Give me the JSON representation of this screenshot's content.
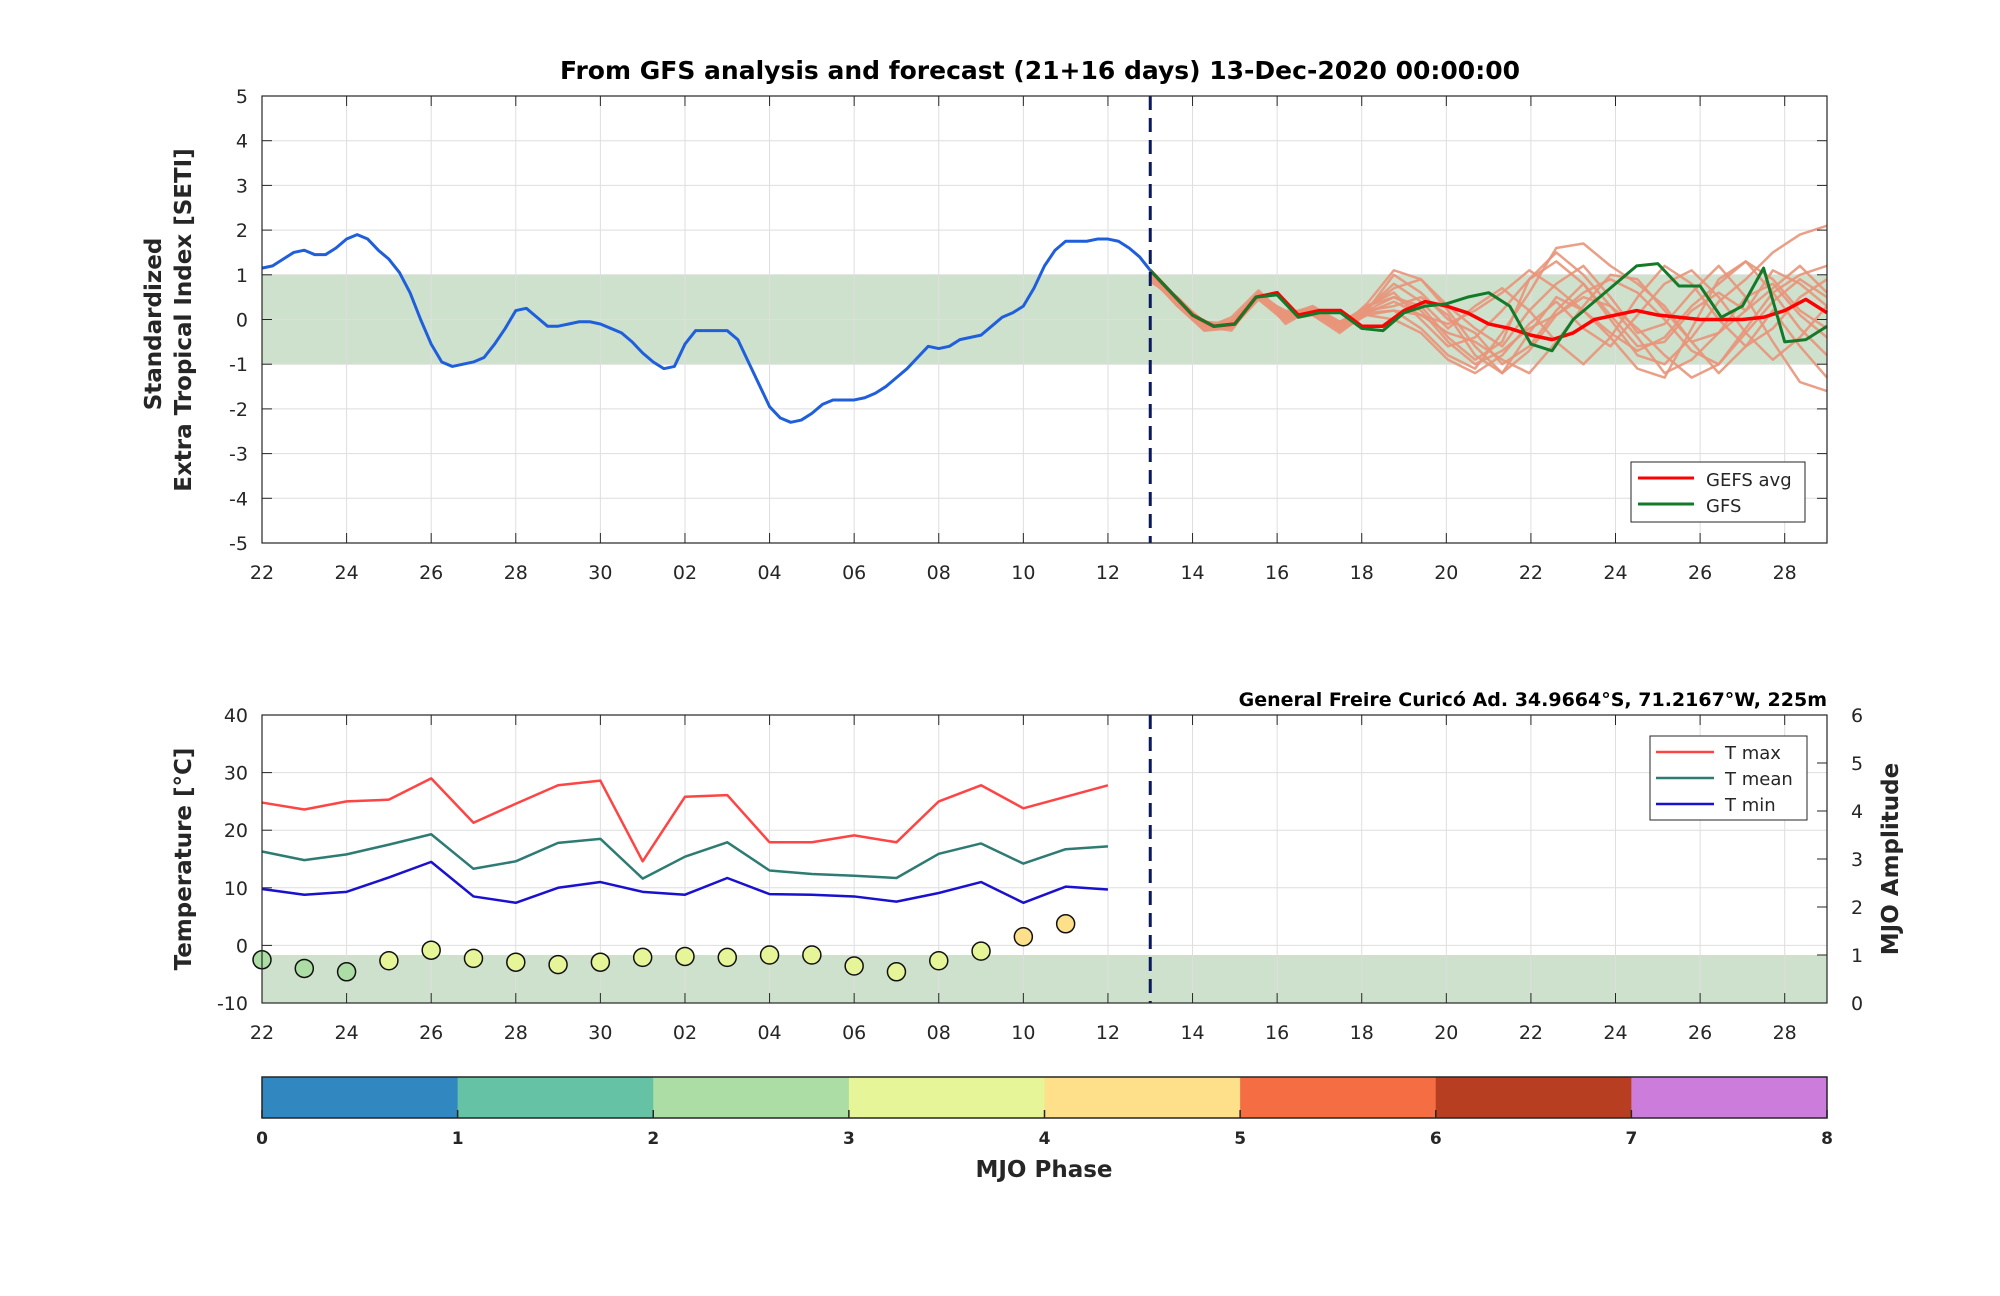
{
  "title": "From GFS analysis and forecast (21+16 days) 13-Dec-2020 00:00:00",
  "station_label": "General Freire Curicó Ad. 34.9664°S, 71.2167°W, 225m",
  "colors": {
    "analysis": "#1f5fdc",
    "gefs_avg": "#ff0000",
    "gfs": "#137a2a",
    "ensemble": "#e8957a",
    "band": "#c2d9c0",
    "tmax": "#ff4444",
    "tmean": "#2e7b74",
    "tmin": "#1a10d0",
    "forecast_line": "#0a1a5c"
  },
  "chart_data": [
    {
      "type": "line",
      "ylabel": "Standardized\nExtra Tropical Index [SETI]",
      "ylim": [
        -5,
        5
      ],
      "yticks": [
        "5",
        "4",
        "3",
        "2",
        "1",
        "0",
        "-1",
        "-2",
        "-3",
        "-4",
        "-5"
      ],
      "xlim_days": [
        0,
        37
      ],
      "xtick_labels": [
        "22",
        "24",
        "26",
        "28",
        "30",
        "02",
        "04",
        "06",
        "08",
        "10",
        "12",
        "14",
        "16",
        "18",
        "20",
        "22",
        "24",
        "26",
        "28"
      ],
      "grid": true,
      "shaded_band": [
        -1,
        1
      ],
      "forecast_start_day": 21,
      "legend": {
        "position": "bottom-right",
        "entries": [
          "GEFS avg",
          "GFS"
        ]
      },
      "series": [
        {
          "name": "Analysis",
          "x": [
            0,
            0.25,
            0.5,
            0.75,
            1,
            1.25,
            1.5,
            1.75,
            2,
            2.25,
            2.5,
            2.75,
            3,
            3.25,
            3.5,
            3.75,
            4,
            4.25,
            4.5,
            4.75,
            5,
            5.25,
            5.5,
            5.75,
            6,
            6.25,
            6.5,
            6.75,
            7,
            7.25,
            7.5,
            7.75,
            8,
            8.25,
            8.5,
            8.75,
            9,
            9.25,
            9.5,
            9.75,
            10,
            10.25,
            10.5,
            10.75,
            11,
            11.25,
            11.5,
            11.75,
            12,
            12.25,
            12.5,
            12.75,
            13,
            13.25,
            13.5,
            13.75,
            14,
            14.25,
            14.5,
            14.75,
            15,
            15.25,
            15.5,
            15.75,
            16,
            16.25,
            16.5,
            16.75,
            17,
            17.25,
            17.5,
            17.75,
            18,
            18.25,
            18.5,
            18.75,
            19,
            19.25,
            19.5,
            19.75,
            20,
            20.25,
            20.5,
            20.75,
            21
          ],
          "y": [
            1.15,
            1.2,
            1.35,
            1.5,
            1.55,
            1.45,
            1.45,
            1.6,
            1.8,
            1.9,
            1.8,
            1.55,
            1.35,
            1.05,
            0.6,
            -0.0,
            -0.55,
            -0.95,
            -1.05,
            -1.0,
            -0.95,
            -0.85,
            -0.55,
            -0.2,
            0.2,
            0.25,
            0.05,
            -0.15,
            -0.15,
            -0.1,
            -0.05,
            -0.05,
            -0.1,
            -0.2,
            -0.3,
            -0.5,
            -0.75,
            -0.95,
            -1.1,
            -1.05,
            -0.55,
            -0.25,
            -0.25,
            -0.25,
            -0.25,
            -0.45,
            -0.95,
            -1.45,
            -1.95,
            -2.2,
            -2.3,
            -2.25,
            -2.1,
            -1.9,
            -1.8,
            -1.8,
            -1.8,
            -1.75,
            -1.65,
            -1.5,
            -1.3,
            -1.1,
            -0.85,
            -0.6,
            -0.65,
            -0.6,
            -0.45,
            -0.4,
            -0.35,
            -0.15,
            0.05,
            0.15,
            0.3,
            0.7,
            1.2,
            1.55,
            1.75,
            1.75,
            1.75,
            1.8,
            1.8,
            1.75,
            1.6,
            1.4,
            1.1
          ]
        },
        {
          "name": "GEFS avg",
          "x": [
            21,
            21.5,
            22,
            22.5,
            23,
            23.5,
            24,
            24.5,
            25,
            25.5,
            26,
            26.5,
            27,
            27.5,
            28,
            28.5,
            29,
            29.5,
            30,
            30.5,
            31,
            31.5,
            32,
            32.5,
            33,
            33.5,
            34,
            34.5,
            35,
            35.5,
            36,
            36.5,
            37
          ],
          "y": [
            1.1,
            0.6,
            0.1,
            -0.15,
            -0.1,
            0.5,
            0.6,
            0.1,
            0.2,
            0.2,
            -0.15,
            -0.15,
            0.2,
            0.4,
            0.3,
            0.15,
            -0.1,
            -0.2,
            -0.35,
            -0.45,
            -0.3,
            0.0,
            0.1,
            0.2,
            0.1,
            0.05,
            0.0,
            0.0,
            0.0,
            0.05,
            0.2,
            0.45,
            0.15
          ]
        },
        {
          "name": "GFS",
          "x": [
            21,
            21.5,
            22,
            22.5,
            23,
            23.5,
            24,
            24.5,
            25,
            25.5,
            26,
            26.5,
            27,
            27.5,
            28,
            28.5,
            29,
            29.5,
            30,
            30.5,
            31,
            31.5,
            32,
            32.5,
            33,
            33.5,
            34,
            34.5,
            35,
            35.5,
            36,
            36.5,
            37
          ],
          "y": [
            1.1,
            0.6,
            0.1,
            -0.15,
            -0.1,
            0.5,
            0.55,
            0.05,
            0.15,
            0.15,
            -0.2,
            -0.25,
            0.15,
            0.3,
            0.35,
            0.5,
            0.6,
            0.3,
            -0.55,
            -0.7,
            0.0,
            0.4,
            0.8,
            1.2,
            1.25,
            0.75,
            0.75,
            0.05,
            0.3,
            1.15,
            -0.5,
            -0.45,
            -0.15
          ]
        }
      ],
      "ensemble_members": [
        [
          0.9,
          0.45,
          -0.2,
          -0.1,
          0.55,
          0.0,
          0.15,
          -0.15,
          0.3,
          0.5,
          0.3,
          -0.4,
          -0.9,
          -0.5,
          0.9,
          1.3,
          0.8,
          0.1,
          -0.6,
          -0.5,
          0.2,
          0.6,
          0.2,
          1.1,
          0.8,
          0.3
        ],
        [
          0.95,
          0.4,
          -0.15,
          -0.05,
          0.5,
          0.1,
          0.2,
          -0.25,
          0.2,
          1.0,
          0.6,
          0.0,
          -0.3,
          -1.0,
          -0.6,
          0.2,
          0.8,
          0.0,
          -0.8,
          -1.0,
          -0.4,
          0.4,
          0.9,
          1.5,
          1.9,
          2.1
        ],
        [
          1.0,
          0.35,
          -0.25,
          -0.2,
          0.6,
          0.15,
          0.25,
          -0.1,
          0.1,
          0.2,
          -0.2,
          -0.8,
          -1.1,
          -0.3,
          0.6,
          1.6,
          1.7,
          1.2,
          0.8,
          0.3,
          -0.5,
          -1.2,
          -0.6,
          0.2,
          -0.6,
          -1.3
        ],
        [
          0.85,
          0.5,
          -0.1,
          -0.15,
          0.45,
          -0.05,
          0.3,
          -0.05,
          0.25,
          0.7,
          0.9,
          0.2,
          -0.6,
          -1.2,
          -0.3,
          0.5,
          0.2,
          -0.4,
          -1.1,
          -1.3,
          -0.2,
          0.9,
          1.3,
          0.6,
          -0.2,
          -0.8
        ],
        [
          0.95,
          0.3,
          -0.2,
          0.05,
          0.65,
          0.05,
          0.1,
          -0.3,
          0.15,
          0.4,
          0.1,
          -0.3,
          -0.5,
          -0.9,
          -1.2,
          -0.5,
          0.3,
          1.0,
          0.9,
          0.2,
          -0.5,
          -0.3,
          0.5,
          0.8,
          0.1,
          -0.4
        ],
        [
          0.9,
          0.45,
          -0.05,
          -0.1,
          0.5,
          0.2,
          0.15,
          -0.2,
          0.35,
          1.1,
          0.9,
          0.3,
          -0.2,
          -0.6,
          0.2,
          0.8,
          1.2,
          0.5,
          -0.3,
          -0.1,
          0.6,
          1.2,
          0.5,
          -0.5,
          -1.4,
          -1.6
        ],
        [
          1.0,
          0.4,
          -0.15,
          -0.25,
          0.55,
          0.1,
          0.2,
          -0.15,
          0.2,
          0.3,
          0.5,
          0.1,
          -0.8,
          -1.2,
          -0.7,
          0.1,
          0.6,
          0.9,
          0.6,
          0.0,
          -0.7,
          -1.0,
          -0.3,
          0.4,
          0.9,
          0.5
        ],
        [
          0.9,
          0.35,
          -0.2,
          -0.05,
          0.6,
          -0.1,
          0.25,
          -0.1,
          0.3,
          0.6,
          0.0,
          -0.6,
          -0.4,
          0.2,
          0.9,
          1.5,
          1.0,
          0.3,
          -0.2,
          -0.8,
          -1.3,
          -1.0,
          -0.2,
          0.6,
          1.0,
          1.2
        ],
        [
          0.95,
          0.5,
          -0.1,
          -0.2,
          0.45,
          0.0,
          0.1,
          -0.25,
          0.1,
          0.0,
          -0.3,
          -0.9,
          -1.2,
          -0.8,
          -0.1,
          0.4,
          -0.2,
          -0.6,
          0.1,
          0.8,
          1.1,
          0.5,
          -0.3,
          -0.9,
          -0.4,
          0.3
        ],
        [
          1.0,
          0.3,
          -0.25,
          -0.15,
          0.5,
          0.15,
          0.2,
          -0.05,
          0.25,
          0.8,
          0.4,
          -0.2,
          0.3,
          0.7,
          0.2,
          -0.5,
          -1.0,
          -0.4,
          0.5,
          1.2,
          0.8,
          0.0,
          -0.6,
          -0.2,
          0.5,
          0.9
        ],
        [
          0.85,
          0.45,
          -0.15,
          0.0,
          0.55,
          0.1,
          0.3,
          -0.15,
          0.15,
          0.2,
          0.1,
          -0.1,
          0.2,
          0.6,
          1.1,
          0.7,
          0.2,
          -0.3,
          -0.7,
          -0.4,
          0.3,
          0.8,
          1.3,
          0.9,
          0.2,
          -0.2
        ],
        [
          0.9,
          0.4,
          -0.2,
          -0.1,
          0.6,
          0.05,
          0.15,
          -0.2,
          0.2,
          0.5,
          0.2,
          -0.5,
          -1.0,
          -0.7,
          -0.2,
          0.1,
          0.5,
          0.3,
          -0.4,
          -1.2,
          -0.9,
          -0.3,
          0.2,
          0.7,
          1.2,
          0.6
        ]
      ]
    },
    {
      "type": "line",
      "ylabel": "Temperature [°C]",
      "ylabel_right": "MJO Amplitude",
      "ylim": [
        -10,
        40
      ],
      "yticks": [
        "40",
        "30",
        "20",
        "10",
        "0",
        "-10"
      ],
      "ylim_right": [
        0,
        6
      ],
      "yticks_right": [
        "6",
        "5",
        "4",
        "3",
        "2",
        "1",
        "0"
      ],
      "xlim_days": [
        0,
        37
      ],
      "xtick_labels": [
        "22",
        "24",
        "26",
        "28",
        "30",
        "02",
        "04",
        "06",
        "08",
        "10",
        "12",
        "14",
        "16",
        "18",
        "20",
        "22",
        "24",
        "26",
        "28"
      ],
      "grid": true,
      "shaded_band_right": [
        0,
        1
      ],
      "forecast_start_day": 21,
      "legend": {
        "position": "top-right",
        "entries": [
          "T max",
          "T mean",
          "T min"
        ]
      },
      "days": [
        0,
        1,
        2,
        3,
        4,
        5,
        6,
        7,
        8,
        9,
        10,
        11,
        12,
        13,
        14,
        15,
        16,
        17,
        18,
        19,
        20
      ],
      "series": [
        {
          "name": "T max",
          "values": [
            24.8,
            23.6,
            25.0,
            25.3,
            29.0,
            21.3,
            24.6,
            27.8,
            28.6,
            14.6,
            25.8,
            26.1,
            17.9,
            17.9,
            19.1,
            17.9,
            25.0,
            27.8,
            23.8,
            25.8,
            27.8
          ]
        },
        {
          "name": "T mean",
          "values": [
            16.3,
            14.8,
            15.8,
            17.5,
            19.3,
            13.3,
            14.6,
            17.8,
            18.5,
            11.6,
            15.4,
            17.9,
            13.0,
            12.4,
            12.1,
            11.7,
            15.9,
            17.7,
            14.2,
            16.7,
            17.2
          ]
        },
        {
          "name": "T min",
          "values": [
            9.8,
            8.8,
            9.3,
            11.8,
            14.5,
            8.5,
            7.4,
            10.0,
            11.0,
            9.3,
            8.8,
            11.7,
            8.9,
            8.8,
            8.5,
            7.6,
            9.1,
            11.0,
            7.4,
            10.2,
            9.7
          ]
        }
      ],
      "mjo": {
        "days": [
          0,
          1,
          2,
          3,
          4,
          5,
          6,
          7,
          8,
          9,
          10,
          11,
          12,
          13,
          14,
          15,
          16,
          17,
          18,
          19
        ],
        "amplitude": [
          0.9,
          0.72,
          0.65,
          0.88,
          1.1,
          0.93,
          0.85,
          0.8,
          0.85,
          0.95,
          0.97,
          0.95,
          1.0,
          1.0,
          0.77,
          0.65,
          0.88,
          1.08,
          1.38,
          1.65
        ],
        "phase": [
          2.5,
          2.5,
          2.5,
          3.1,
          3.1,
          3.1,
          3.1,
          3.1,
          3.1,
          3.1,
          3.1,
          3.1,
          3.1,
          3.1,
          3.1,
          3.1,
          3.1,
          3.3,
          4.5,
          4.5
        ]
      }
    },
    {
      "type": "colorbar",
      "label": "MJO Phase",
      "ticks": [
        "0",
        "1",
        "2",
        "3",
        "4",
        "5",
        "6",
        "7",
        "8"
      ],
      "colors": [
        "#3188c0",
        "#66c2a5",
        "#abdda4",
        "#e6f598",
        "#fee08b",
        "#f46d43",
        "#b73e21",
        "#cc7ddb"
      ]
    }
  ]
}
